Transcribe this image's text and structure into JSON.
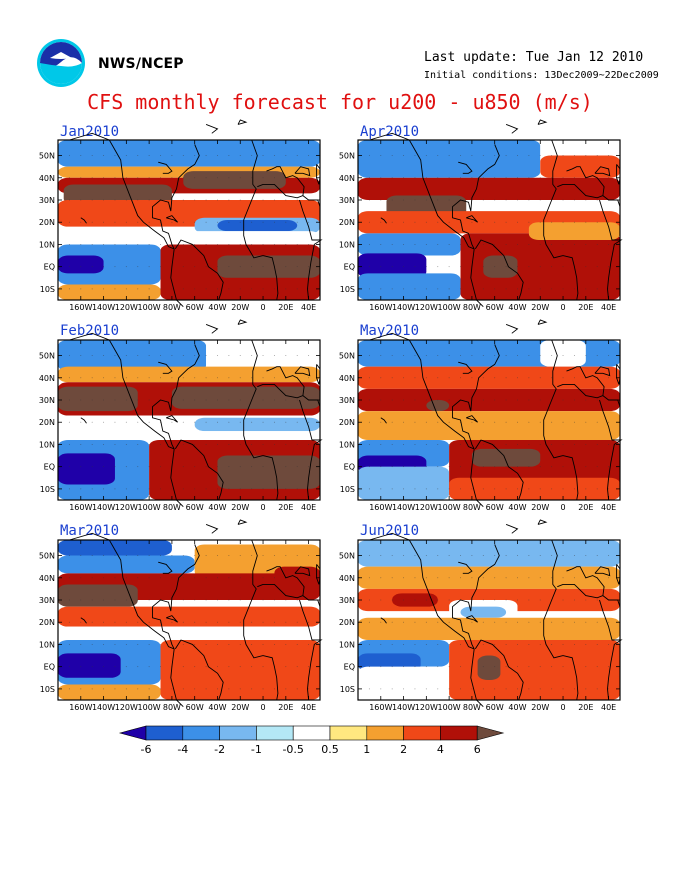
{
  "header": {
    "agency": "NWS/NCEP",
    "last_update": "Last update: Tue Jan 12 2010",
    "initial_conditions": "Initial conditions: 13Dec2009~22Dec2009",
    "title": "CFS monthly forecast for u200 - u850 (m/s)"
  },
  "logo_icon": "noaa-logo-icon",
  "lat_labels": [
    "50N",
    "40N",
    "30N",
    "20N",
    "10N",
    "EQ",
    "10S"
  ],
  "lon_labels": [
    "160W",
    "140W",
    "120W",
    "100W",
    "80W",
    "60W",
    "40W",
    "20W",
    "0",
    "20E",
    "40E"
  ],
  "panels": [
    {
      "id": "jan",
      "title": "Jan2010",
      "column": 0,
      "row": 0
    },
    {
      "id": "apr",
      "title": "Apr2010",
      "column": 1,
      "row": 0
    },
    {
      "id": "feb",
      "title": "Feb2010",
      "column": 0,
      "row": 1
    },
    {
      "id": "may",
      "title": "May2010",
      "column": 1,
      "row": 1
    },
    {
      "id": "mar",
      "title": "Mar2010",
      "column": 0,
      "row": 2
    },
    {
      "id": "jun",
      "title": "Jun2010",
      "column": 1,
      "row": 2
    }
  ],
  "colorbar": {
    "labels": [
      "-6",
      "-4",
      "-2",
      "-1",
      "-0.5",
      "0.5",
      "1",
      "2",
      "4",
      "6"
    ],
    "colors": [
      "#1f00a8",
      "#1e5fd0",
      "#3c90e8",
      "#78b8f0",
      "#b4e8f6",
      "#ffffff",
      "#ffe880",
      "#f4a030",
      "#f04818",
      "#b01008",
      "#6e4a3c"
    ]
  },
  "map_colors": {
    "coast": "#000000",
    "level_m6": "#1f00a8",
    "level_m4": "#1e5fd0",
    "level_m2": "#3c90e8",
    "level_m1": "#78b8f0",
    "level_m05": "#b4e8f6",
    "level_0": "#ffffff",
    "level_05": "#ffe880",
    "level_1": "#f4a030",
    "level_2": "#f04818",
    "level_4": "#b01008",
    "level_6": "#6e4a3c"
  }
}
